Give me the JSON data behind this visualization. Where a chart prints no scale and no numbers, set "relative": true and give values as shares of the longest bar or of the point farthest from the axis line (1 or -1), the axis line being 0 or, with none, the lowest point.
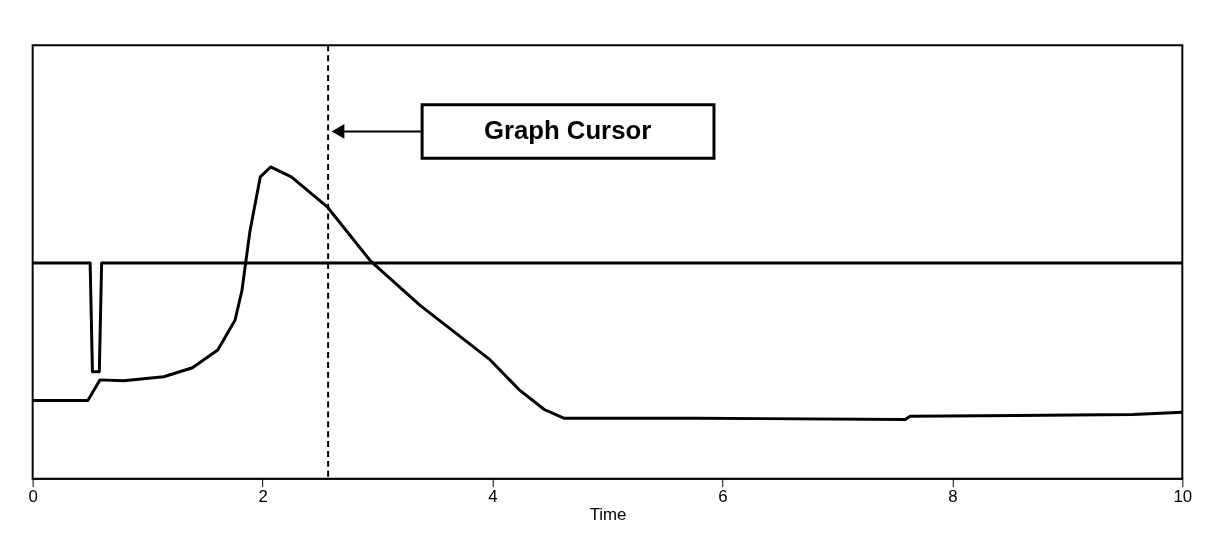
{
  "chart_data": {
    "type": "line",
    "relative": true,
    "xlabel": "Time",
    "xlim": [
      0,
      10
    ],
    "xticks": [
      0,
      2,
      4,
      6,
      8,
      10
    ],
    "grid": false,
    "legend": false,
    "marker": "none",
    "line_style": "solid",
    "series": [
      {
        "color": "#000000",
        "x": [
          0,
          0.5,
          0.52,
          0.58,
          0.6,
          10
        ],
        "values": [
          0.692,
          0.692,
          0.343,
          0.343,
          0.692,
          0.692
        ]
      },
      {
        "color": "#000000",
        "x": [
          0,
          0.48,
          0.585,
          0.79,
          1.14,
          1.39,
          1.61,
          1.76,
          1.82,
          1.89,
          1.98,
          2.07,
          2.25,
          2.56,
          2.94,
          3.37,
          3.98,
          4.23,
          4.45,
          4.62,
          5.78,
          7.59,
          7.63,
          9.57,
          10
        ],
        "values": [
          0.251,
          0.251,
          0.317,
          0.314,
          0.327,
          0.356,
          0.413,
          0.508,
          0.603,
          0.794,
          0.968,
          1.0,
          0.968,
          0.873,
          0.698,
          0.556,
          0.381,
          0.286,
          0.222,
          0.194,
          0.194,
          0.19,
          0.2,
          0.206,
          0.213
        ]
      }
    ],
    "ref_lines": [
      {
        "axis": "x",
        "value": 2.57,
        "color": "#000000",
        "line_style": "dashed"
      }
    ],
    "annotations": [
      "Graph Cursor"
    ]
  }
}
